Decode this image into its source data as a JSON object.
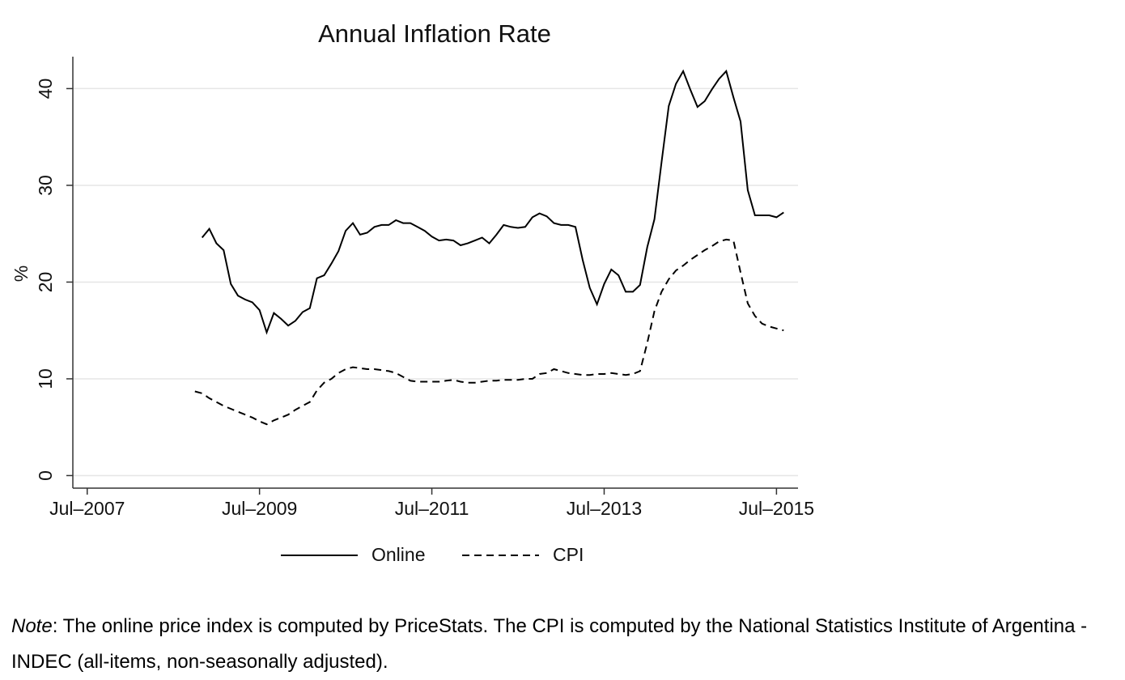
{
  "chart_data": {
    "type": "line",
    "title": "Annual Inflation Rate",
    "ylabel": "%",
    "x": [
      "2008-10",
      "2008-11",
      "2008-12",
      "2009-01",
      "2009-02",
      "2009-03",
      "2009-04",
      "2009-05",
      "2009-06",
      "2009-07",
      "2009-08",
      "2009-09",
      "2009-10",
      "2009-11",
      "2009-12",
      "2010-01",
      "2010-02",
      "2010-03",
      "2010-04",
      "2010-05",
      "2010-06",
      "2010-07",
      "2010-08",
      "2010-09",
      "2010-10",
      "2010-11",
      "2010-12",
      "2011-01",
      "2011-02",
      "2011-03",
      "2011-04",
      "2011-05",
      "2011-06",
      "2011-07",
      "2011-08",
      "2011-09",
      "2011-10",
      "2011-11",
      "2011-12",
      "2012-01",
      "2012-02",
      "2012-03",
      "2012-04",
      "2012-05",
      "2012-06",
      "2012-07",
      "2012-08",
      "2012-09",
      "2012-10",
      "2012-11",
      "2012-12",
      "2013-01",
      "2013-02",
      "2013-03",
      "2013-04",
      "2013-05",
      "2013-06",
      "2013-07",
      "2013-08",
      "2013-09",
      "2013-10",
      "2013-11",
      "2013-12",
      "2014-01",
      "2014-02",
      "2014-03",
      "2014-04",
      "2014-05",
      "2014-06",
      "2014-07",
      "2014-08",
      "2014-09",
      "2014-10",
      "2014-11",
      "2014-12",
      "2015-01",
      "2015-02",
      "2015-03",
      "2015-04",
      "2015-05",
      "2015-06",
      "2015-07",
      "2015-08"
    ],
    "series": [
      {
        "name": "Online",
        "color": "#000000",
        "dash": "solid",
        "values": [
          null,
          24.6,
          25.5,
          24,
          23.3,
          19.8,
          18.6,
          18.2,
          17.9,
          17.1,
          14.8,
          16.8,
          16.2,
          15.5,
          16,
          16.9,
          17.3,
          20.4,
          20.7,
          21.9,
          23.2,
          25.3,
          26.1,
          24.9,
          25.1,
          25.7,
          25.9,
          25.9,
          26.4,
          26.1,
          26.1,
          25.7,
          25.3,
          24.7,
          24.3,
          24.4,
          24.3,
          23.8,
          24,
          24.3,
          24.6,
          24,
          24.9,
          25.9,
          25.7,
          25.6,
          25.7,
          26.7,
          27.1,
          26.8,
          26.1,
          25.9,
          25.9,
          25.7,
          22.3,
          19.4,
          17.7,
          19.8,
          21.3,
          20.7,
          19,
          19,
          19.7,
          23.6,
          26.5,
          32.4,
          38.2,
          40.5,
          41.8,
          39.9,
          38.1,
          38.7,
          39.9,
          41,
          41.8,
          39.1,
          36.6,
          29.5,
          26.9,
          26.9,
          26.9,
          26.7,
          27.2
        ]
      },
      {
        "name": "CPI",
        "color": "#000000",
        "dash": "dashed",
        "values": [
          8.7,
          8.5,
          8.0,
          7.6,
          7.2,
          6.9,
          6.6,
          6.3,
          6.0,
          5.6,
          5.3,
          5.7,
          6.0,
          6.3,
          6.8,
          7.2,
          7.6,
          8.8,
          9.6,
          10.0,
          10.6,
          11.0,
          11.2,
          11.1,
          11.0,
          11.0,
          10.9,
          10.8,
          10.6,
          10.2,
          9.8,
          9.7,
          9.7,
          9.7,
          9.7,
          9.8,
          9.9,
          9.7,
          9.6,
          9.6,
          9.7,
          9.8,
          9.8,
          9.9,
          9.9,
          9.9,
          10.0,
          10.0,
          10.5,
          10.6,
          11.0,
          10.8,
          10.6,
          10.5,
          10.4,
          10.4,
          10.5,
          10.5,
          10.6,
          10.5,
          10.4,
          10.5,
          10.8,
          13.7,
          17.0,
          19.0,
          20.3,
          21.2,
          21.7,
          22.3,
          22.8,
          23.3,
          23.7,
          24.2,
          24.4,
          24.3,
          21.0,
          17.8,
          16.5,
          15.7,
          15.4,
          15.2,
          15.0
        ]
      }
    ],
    "xlim": [
      "2007-05",
      "2015-10"
    ],
    "xticks": [
      {
        "value": "2007-07",
        "label": "Jul–2007"
      },
      {
        "value": "2009-07",
        "label": "Jul–2009"
      },
      {
        "value": "2011-07",
        "label": "Jul–2011"
      },
      {
        "value": "2013-07",
        "label": "Jul–2013"
      },
      {
        "value": "2015-07",
        "label": "Jul–2015"
      }
    ],
    "ylim": [
      -1.3,
      43.3
    ],
    "yticks": [
      0,
      10,
      20,
      30,
      40
    ],
    "grid": true,
    "legend": "bottom"
  },
  "note": {
    "label": "Note",
    "text": ": The online price index is computed by PriceStats. The CPI is computed by the National Statistics Institute of Argentina - INDEC (all-items, non-seasonally adjusted)."
  }
}
